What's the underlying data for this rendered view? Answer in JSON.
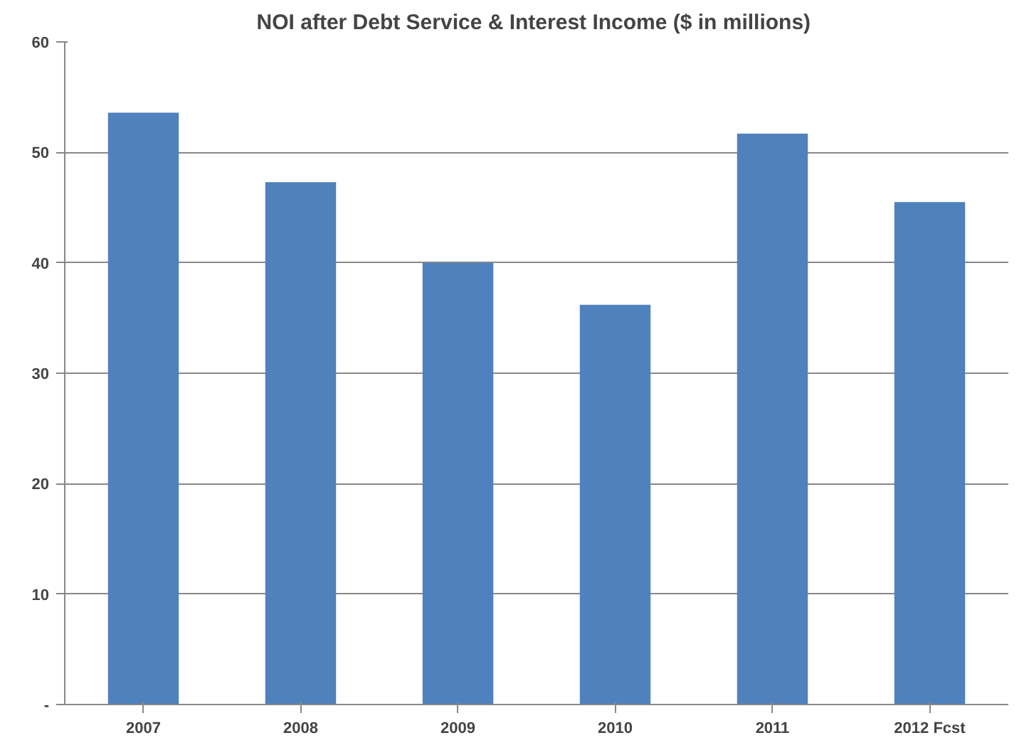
{
  "chart_data": {
    "type": "bar",
    "title": "NOI after Debt Service & Interest  Income ($ in millions)",
    "categories": [
      "2007",
      "2008",
      "2009",
      "2010",
      "2011",
      "2012 Fcst"
    ],
    "values": [
      53.6,
      47.3,
      40.0,
      36.2,
      51.7,
      45.5
    ],
    "color": "#4f81bd",
    "ylim": [
      0,
      60
    ],
    "yticks": [
      {
        "value": 0,
        "label": "-"
      },
      10,
      20,
      30,
      40,
      50,
      60
    ],
    "grid": "y"
  }
}
